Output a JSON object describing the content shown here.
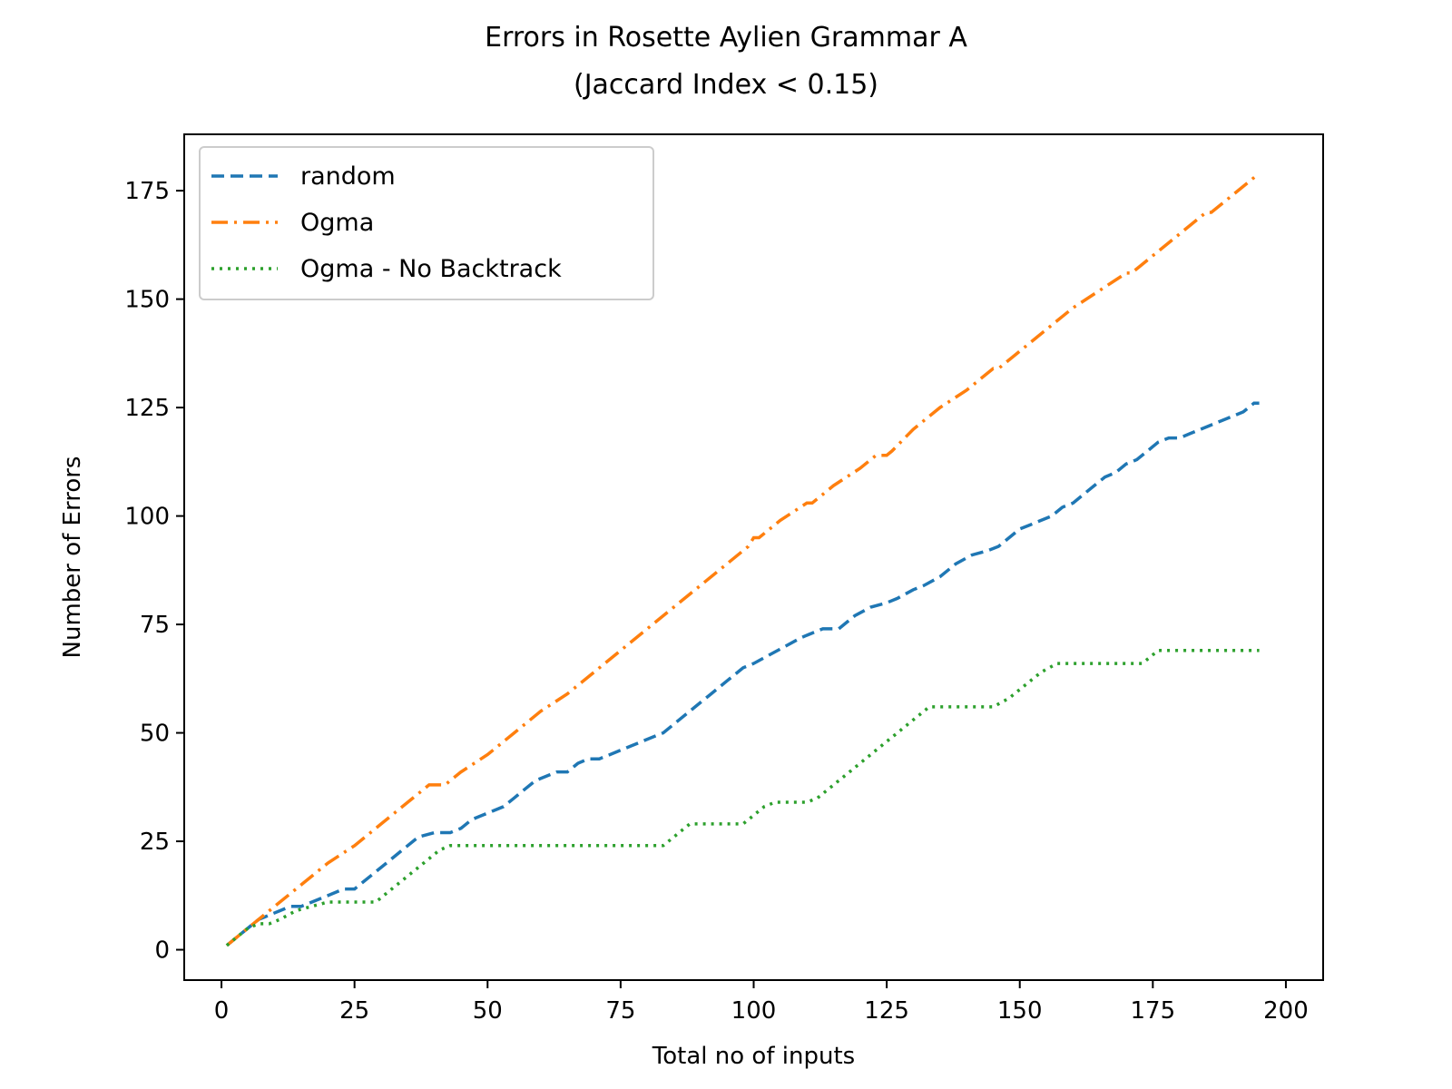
{
  "chart_data": {
    "type": "line",
    "title": "Errors in Rosette Aylien Grammar A",
    "subtitle": "(Jaccard Index < 0.15)",
    "xlabel": "Total no of inputs",
    "ylabel": "Number of Errors",
    "xlim": [
      -7,
      207
    ],
    "ylim": [
      -7,
      188
    ],
    "xticks": [
      0,
      25,
      50,
      75,
      100,
      125,
      150,
      175,
      200
    ],
    "yticks": [
      0,
      25,
      50,
      75,
      100,
      125,
      150,
      175
    ],
    "grid": false,
    "legend_position": "upper-left",
    "series": [
      {
        "name": "random",
        "color": "#1f77b4",
        "style": "dashed",
        "x": [
          1,
          3,
          5,
          7,
          9,
          11,
          13,
          15,
          17,
          19,
          21,
          23,
          25,
          28,
          31,
          34,
          37,
          40,
          41,
          43,
          45,
          47,
          49,
          51,
          53,
          55,
          57,
          59,
          61,
          63,
          65,
          67,
          69,
          71,
          73,
          75,
          77,
          79,
          81,
          83,
          86,
          89,
          92,
          95,
          98,
          100,
          103,
          106,
          109,
          111,
          113,
          116,
          119,
          122,
          125,
          127,
          130,
          132,
          135,
          138,
          141,
          144,
          146,
          148,
          150,
          152,
          154,
          156,
          158,
          160,
          162,
          164,
          166,
          168,
          170,
          172,
          174,
          176,
          178,
          180,
          182,
          184,
          186,
          188,
          190,
          192,
          194,
          195
        ],
        "y": [
          1,
          3,
          5,
          7,
          8,
          9,
          10,
          10,
          11,
          12,
          13,
          14,
          14,
          17,
          20,
          23,
          26,
          27,
          27,
          27,
          28,
          30,
          31,
          32,
          33,
          35,
          37,
          39,
          40,
          41,
          41,
          43,
          44,
          44,
          45,
          46,
          47,
          48,
          49,
          50,
          53,
          56,
          59,
          62,
          65,
          66,
          68,
          70,
          72,
          73,
          74,
          74,
          77,
          79,
          80,
          81,
          83,
          84,
          86,
          89,
          91,
          92,
          93,
          95,
          97,
          98,
          99,
          100,
          102,
          103,
          105,
          107,
          109,
          110,
          112,
          113,
          115,
          117,
          118,
          118,
          119,
          120,
          121,
          122,
          123,
          124,
          126,
          126
        ]
      },
      {
        "name": "Ogma",
        "color": "#ff7f0e",
        "style": "dashdot",
        "x": [
          1,
          5,
          10,
          15,
          20,
          25,
          30,
          35,
          39,
          40,
          42,
          45,
          50,
          55,
          60,
          65,
          70,
          75,
          80,
          85,
          90,
          95,
          99,
          100,
          101,
          105,
          110,
          111,
          115,
          120,
          123,
          125,
          126,
          130,
          135,
          140,
          145,
          146,
          147,
          150,
          155,
          160,
          165,
          170,
          171,
          175,
          180,
          185,
          186,
          190,
          195
        ],
        "y": [
          1,
          5,
          10,
          15,
          20,
          24,
          29,
          34,
          38,
          38,
          38,
          41,
          45,
          50,
          55,
          59,
          64,
          69,
          74,
          79,
          84,
          89,
          93,
          95,
          95,
          99,
          103,
          103,
          107,
          111,
          114,
          114,
          115,
          120,
          125,
          129,
          134,
          134,
          135,
          138,
          143,
          148,
          152,
          156,
          156,
          160,
          165,
          170,
          170,
          174,
          179
        ]
      },
      {
        "name": "Ogma - No Backtrack",
        "color": "#2ca02c",
        "style": "dotted",
        "x": [
          1,
          3,
          5,
          7,
          9,
          11,
          14,
          17,
          20,
          25,
          29,
          32,
          35,
          38,
          41,
          43,
          50,
          60,
          70,
          80,
          83,
          85,
          88,
          90,
          95,
          98,
          100,
          102,
          104,
          106,
          110,
          112,
          115,
          118,
          121,
          124,
          127,
          130,
          133,
          136,
          140,
          145,
          148,
          151,
          154,
          157,
          160,
          165,
          170,
          173,
          176,
          180,
          185,
          190,
          195
        ],
        "y": [
          1,
          3,
          5,
          6,
          6,
          7,
          9,
          10,
          11,
          11,
          11,
          14,
          17,
          20,
          23,
          24,
          24,
          24,
          24,
          24,
          24,
          26,
          29,
          29,
          29,
          29,
          31,
          33,
          34,
          34,
          34,
          35,
          38,
          41,
          44,
          47,
          50,
          53,
          56,
          56,
          56,
          56,
          58,
          61,
          64,
          66,
          66,
          66,
          66,
          66,
          69,
          69,
          69,
          69,
          69
        ]
      }
    ]
  }
}
